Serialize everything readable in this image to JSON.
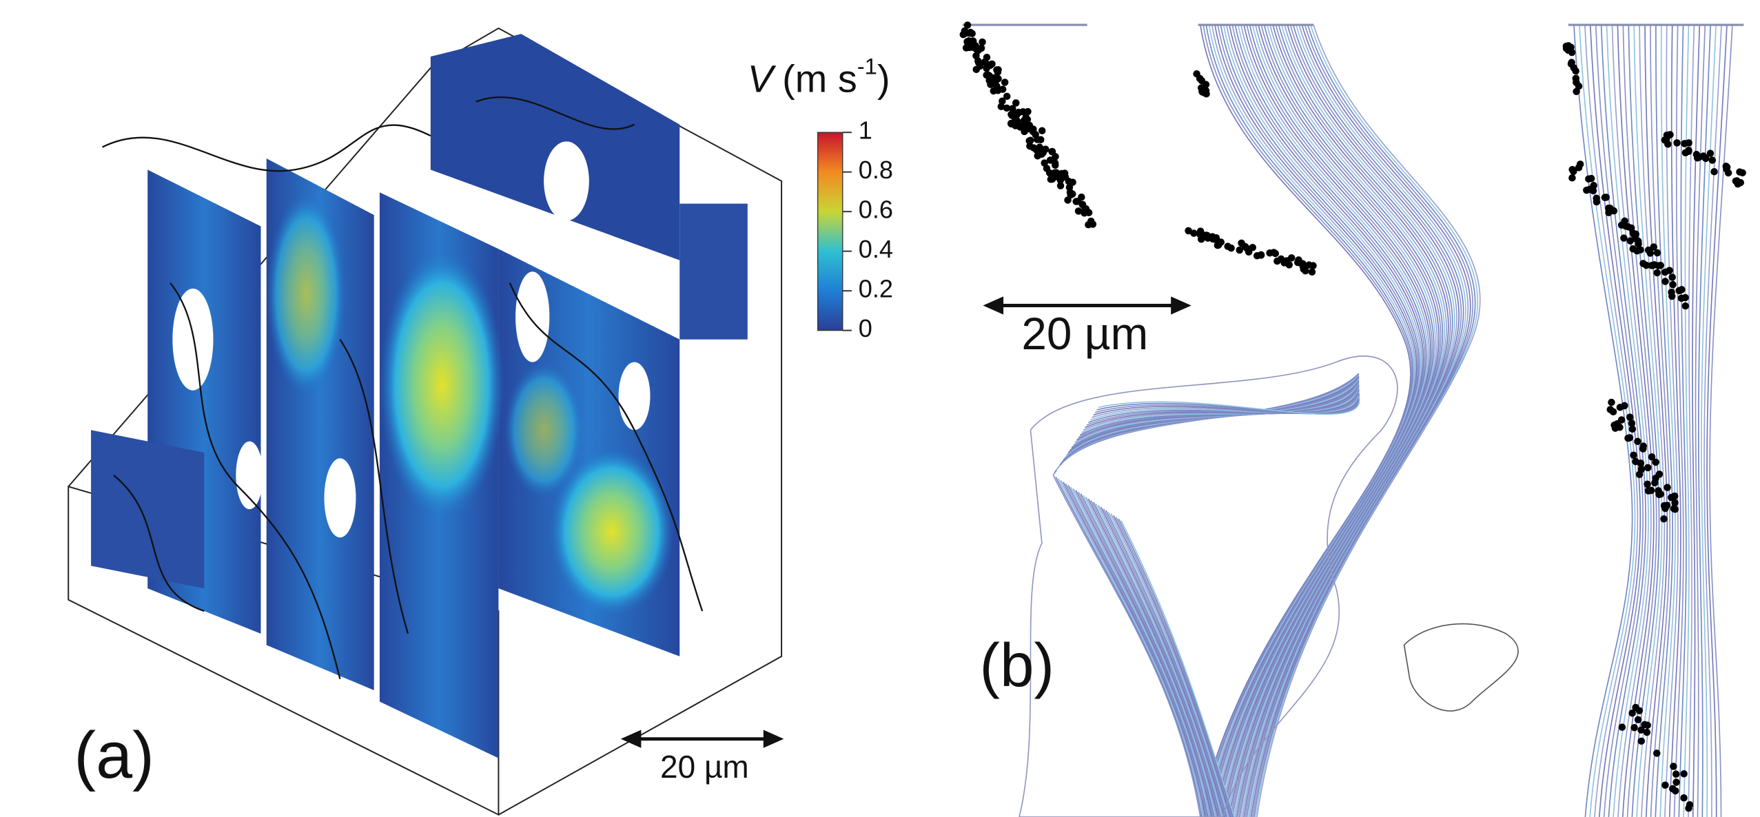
{
  "figure": {
    "panel_a": {
      "label": "(a)",
      "scale_bar": "20 µm"
    },
    "panel_b": {
      "label": "(b)",
      "scale_bar": "20 µm"
    },
    "colorbar": {
      "variable": "V",
      "unit_open": "(m s",
      "unit_exponent": "-1",
      "unit_close": ")",
      "lim": [
        0,
        1
      ],
      "ticks": [
        0,
        0.2,
        0.4,
        0.6,
        0.8,
        1
      ]
    }
  }
}
